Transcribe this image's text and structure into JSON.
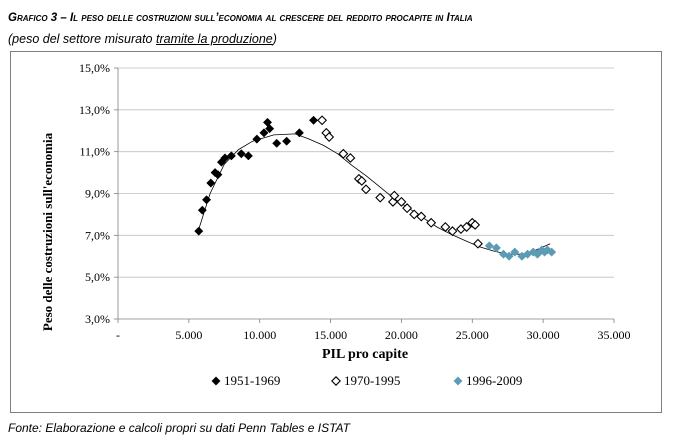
{
  "header": {
    "title": "Grafico 3 – Il peso delle costruzioni sull’economia al crescere del reddito procapite in Italia",
    "subtitle_prefix": "(peso del settore misurato ",
    "subtitle_underlined": "tramite la produzione",
    "subtitle_suffix": ")"
  },
  "footer": {
    "source": "Fonte: Elaborazione e calcoli propri su dati Penn Tables e ISTAT"
  },
  "chart_data": {
    "type": "scatter",
    "xlabel": "PIL pro capite",
    "ylabel": "Peso delle costruzioni sull'economia",
    "xlim": [
      0,
      35000
    ],
    "ylim": [
      3.0,
      15.0
    ],
    "x_ticks": [
      {
        "value": 0,
        "label": "-"
      },
      {
        "value": 5000,
        "label": "5.000"
      },
      {
        "value": 10000,
        "label": "10.000"
      },
      {
        "value": 15000,
        "label": "15.000"
      },
      {
        "value": 20000,
        "label": "20.000"
      },
      {
        "value": 25000,
        "label": "25.000"
      },
      {
        "value": 30000,
        "label": "30.000"
      },
      {
        "value": 35000,
        "label": "35.000"
      }
    ],
    "y_ticks": [
      {
        "value": 3.0,
        "label": "3,0%"
      },
      {
        "value": 5.0,
        "label": "5,0%"
      },
      {
        "value": 7.0,
        "label": "7,0%"
      },
      {
        "value": 9.0,
        "label": "9,0%"
      },
      {
        "value": 11.0,
        "label": "11,0%"
      },
      {
        "value": 13.0,
        "label": "13,0%"
      },
      {
        "value": 15.0,
        "label": "15,0%"
      }
    ],
    "grid": "horizontal",
    "legend_position": "bottom",
    "series": [
      {
        "name": "1951-1969",
        "marker": "diamond-filled",
        "color": "#000000",
        "points": [
          [
            5700,
            7.2
          ],
          [
            5950,
            8.2
          ],
          [
            6250,
            8.7
          ],
          [
            6550,
            9.5
          ],
          [
            6850,
            10.0
          ],
          [
            7050,
            9.9
          ],
          [
            7300,
            10.5
          ],
          [
            7550,
            10.7
          ],
          [
            8000,
            10.8
          ],
          [
            8700,
            10.9
          ],
          [
            9200,
            10.8
          ],
          [
            9800,
            11.6
          ],
          [
            10300,
            11.9
          ],
          [
            10550,
            12.4
          ],
          [
            10700,
            12.1
          ],
          [
            11200,
            11.4
          ],
          [
            11900,
            11.5
          ],
          [
            12800,
            11.9
          ],
          [
            13800,
            12.5
          ]
        ]
      },
      {
        "name": "1970-1995",
        "marker": "diamond-open",
        "color": "#000000",
        "points": [
          [
            14400,
            12.5
          ],
          [
            14700,
            11.9
          ],
          [
            14900,
            11.7
          ],
          [
            15900,
            10.9
          ],
          [
            16400,
            10.7
          ],
          [
            17000,
            9.7
          ],
          [
            17200,
            9.6
          ],
          [
            17500,
            9.2
          ],
          [
            18500,
            8.8
          ],
          [
            19400,
            8.6
          ],
          [
            19500,
            8.9
          ],
          [
            20000,
            8.6
          ],
          [
            20400,
            8.3
          ],
          [
            20900,
            8.0
          ],
          [
            21400,
            7.9
          ],
          [
            22100,
            7.6
          ],
          [
            23100,
            7.4
          ],
          [
            23600,
            7.2
          ],
          [
            24200,
            7.3
          ],
          [
            24600,
            7.4
          ],
          [
            25000,
            7.6
          ],
          [
            25200,
            7.5
          ],
          [
            25400,
            6.6
          ]
        ]
      },
      {
        "name": "1996-2009",
        "marker": "diamond-filled",
        "color": "#5b9bb5",
        "points": [
          [
            26200,
            6.5
          ],
          [
            26700,
            6.4
          ],
          [
            27200,
            6.1
          ],
          [
            27600,
            6.0
          ],
          [
            28000,
            6.2
          ],
          [
            28500,
            6.0
          ],
          [
            28900,
            6.1
          ],
          [
            29300,
            6.2
          ],
          [
            29600,
            6.1
          ],
          [
            29900,
            6.3
          ],
          [
            30100,
            6.2
          ],
          [
            30300,
            6.3
          ],
          [
            30600,
            6.2
          ]
        ]
      }
    ],
    "trendline": {
      "points": [
        [
          5700,
          7.3
        ],
        [
          6500,
          9.0
        ],
        [
          7500,
          10.4
        ],
        [
          8500,
          11.1
        ],
        [
          9500,
          11.5
        ],
        [
          11000,
          11.8
        ],
        [
          12500,
          11.85
        ],
        [
          13500,
          11.6
        ],
        [
          14500,
          11.3
        ],
        [
          15500,
          10.9
        ],
        [
          16500,
          10.35
        ],
        [
          17500,
          9.85
        ],
        [
          18500,
          9.3
        ],
        [
          19500,
          8.75
        ],
        [
          20500,
          8.3
        ],
        [
          21500,
          7.85
        ],
        [
          22500,
          7.4
        ],
        [
          23500,
          7.05
        ],
        [
          24500,
          6.75
        ],
        [
          25500,
          6.45
        ],
        [
          26500,
          6.25
        ],
        [
          27500,
          6.1
        ],
        [
          28500,
          6.1
        ],
        [
          29500,
          6.3
        ],
        [
          30500,
          6.6
        ]
      ]
    }
  }
}
